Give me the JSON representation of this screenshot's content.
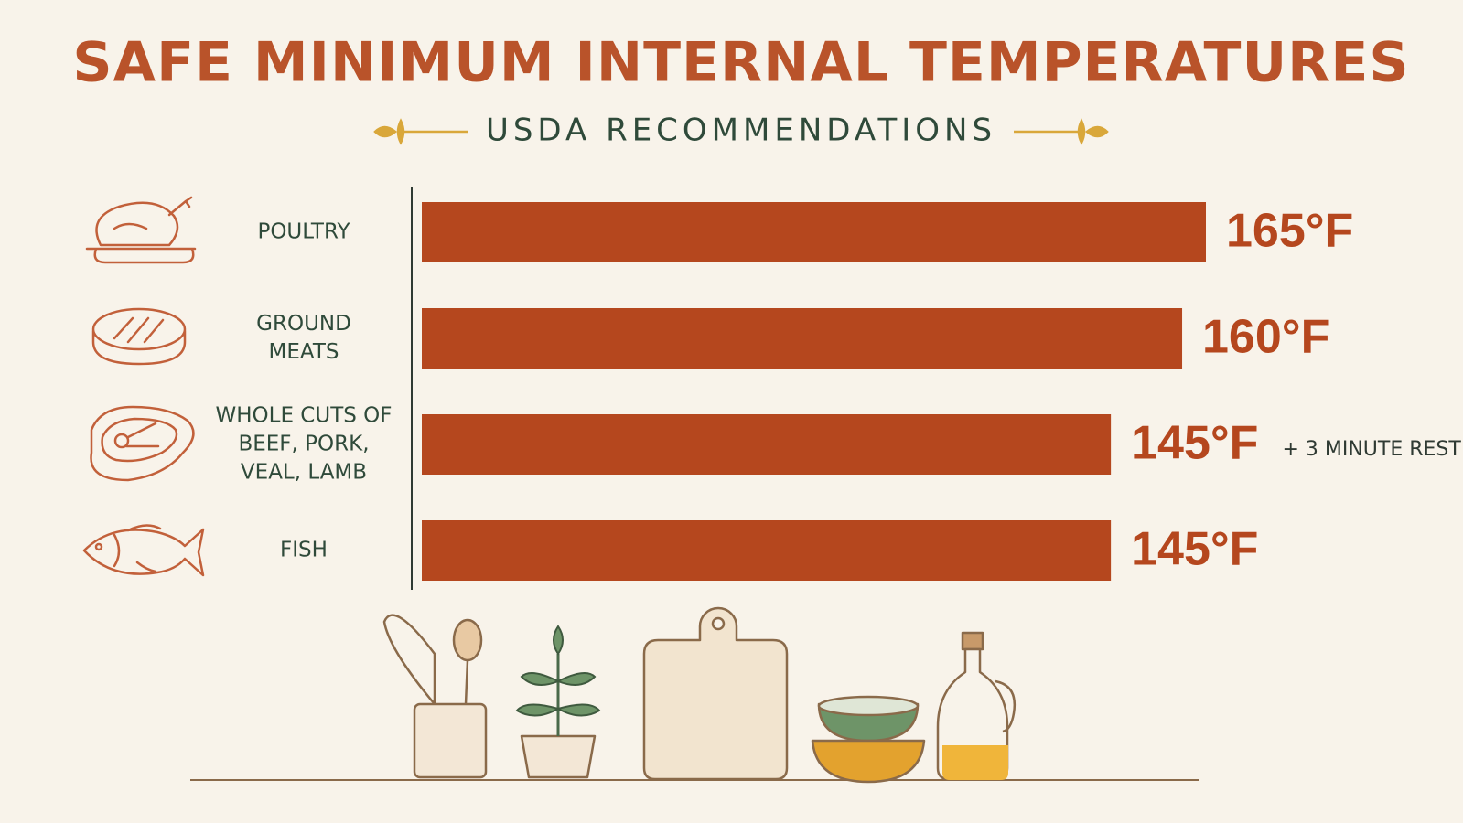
{
  "chart_data": {
    "type": "bar",
    "orientation": "horizontal",
    "title": "SAFE MINIMUM INTERNAL TEMPERATURES",
    "subtitle": "USDA RECOMMENDATIONS",
    "categories": [
      "POULTRY",
      "GROUND\nMEATS",
      "WHOLE CUTS OF\nBEEF, PORK,\nVEAL, LAMB",
      "FISH"
    ],
    "values": [
      165,
      160,
      145,
      145
    ],
    "value_labels": [
      "165°F",
      "160°F",
      "145°F",
      "145°F"
    ],
    "annotations": [
      {
        "category_index": 2,
        "text": "+ 3 MINUTE REST"
      }
    ],
    "color": "#b5471e"
  }
}
